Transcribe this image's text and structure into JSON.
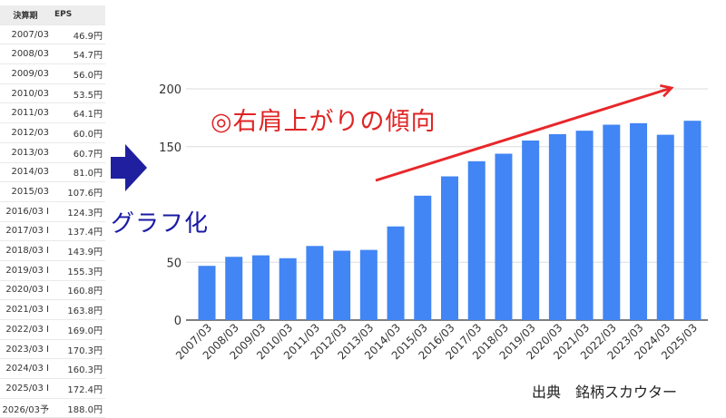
{
  "table": {
    "headers": {
      "period": "決算期",
      "eps": "EPS"
    },
    "rows": [
      {
        "period": "2007/03",
        "eps": "46.9円"
      },
      {
        "period": "2008/03",
        "eps": "54.7円"
      },
      {
        "period": "2009/03",
        "eps": "56.0円"
      },
      {
        "period": "2010/03",
        "eps": "53.5円"
      },
      {
        "period": "2011/03",
        "eps": "64.1円"
      },
      {
        "period": "2012/03",
        "eps": "60.0円"
      },
      {
        "period": "2013/03",
        "eps": "60.7円"
      },
      {
        "period": "2014/03",
        "eps": "81.0円"
      },
      {
        "period": "2015/03",
        "eps": "107.6円"
      },
      {
        "period": "2016/03 I",
        "eps": "124.3円"
      },
      {
        "period": "2017/03 I",
        "eps": "137.4円"
      },
      {
        "period": "2018/03 I",
        "eps": "143.9円"
      },
      {
        "period": "2019/03 I",
        "eps": "155.3円"
      },
      {
        "period": "2020/03 I",
        "eps": "160.8円"
      },
      {
        "period": "2021/03 I",
        "eps": "163.8円"
      },
      {
        "period": "2022/03 I",
        "eps": "169.0円"
      },
      {
        "period": "2023/03 I",
        "eps": "170.3円"
      },
      {
        "period": "2024/03 I",
        "eps": "160.3円"
      },
      {
        "period": "2025/03 I",
        "eps": "172.4円"
      },
      {
        "period": "2026/03予",
        "eps": "188.0円"
      }
    ]
  },
  "annotations": {
    "graph_label": "グラフ化",
    "trend_text": "◎右肩上がりの傾向",
    "source": "出典　銘柄スカウター"
  },
  "colors": {
    "bar": "#4285f4",
    "trend_arrow": "#e8272a",
    "side_arrow": "#1f1fa0",
    "grid": "#dddddd",
    "axis": "#333333"
  },
  "chart_data": {
    "type": "bar",
    "categories": [
      "2007/03",
      "2008/03",
      "2009/03",
      "2010/03",
      "2011/03",
      "2012/03",
      "2013/03",
      "2014/03",
      "2015/03",
      "2016/03",
      "2017/03",
      "2018/03",
      "2019/03",
      "2020/03",
      "2021/03",
      "2022/03",
      "2023/03",
      "2024/03",
      "2025/03"
    ],
    "values": [
      46.9,
      54.7,
      56.0,
      53.5,
      64.1,
      60.0,
      60.7,
      81.0,
      107.6,
      124.3,
      137.4,
      143.9,
      155.3,
      160.8,
      163.8,
      169.0,
      170.3,
      160.3,
      172.4
    ],
    "yticks": [
      0,
      50,
      150,
      200
    ],
    "ylim": [
      0,
      200
    ],
    "grid": true,
    "title": "",
    "xlabel": "",
    "ylabel": ""
  }
}
